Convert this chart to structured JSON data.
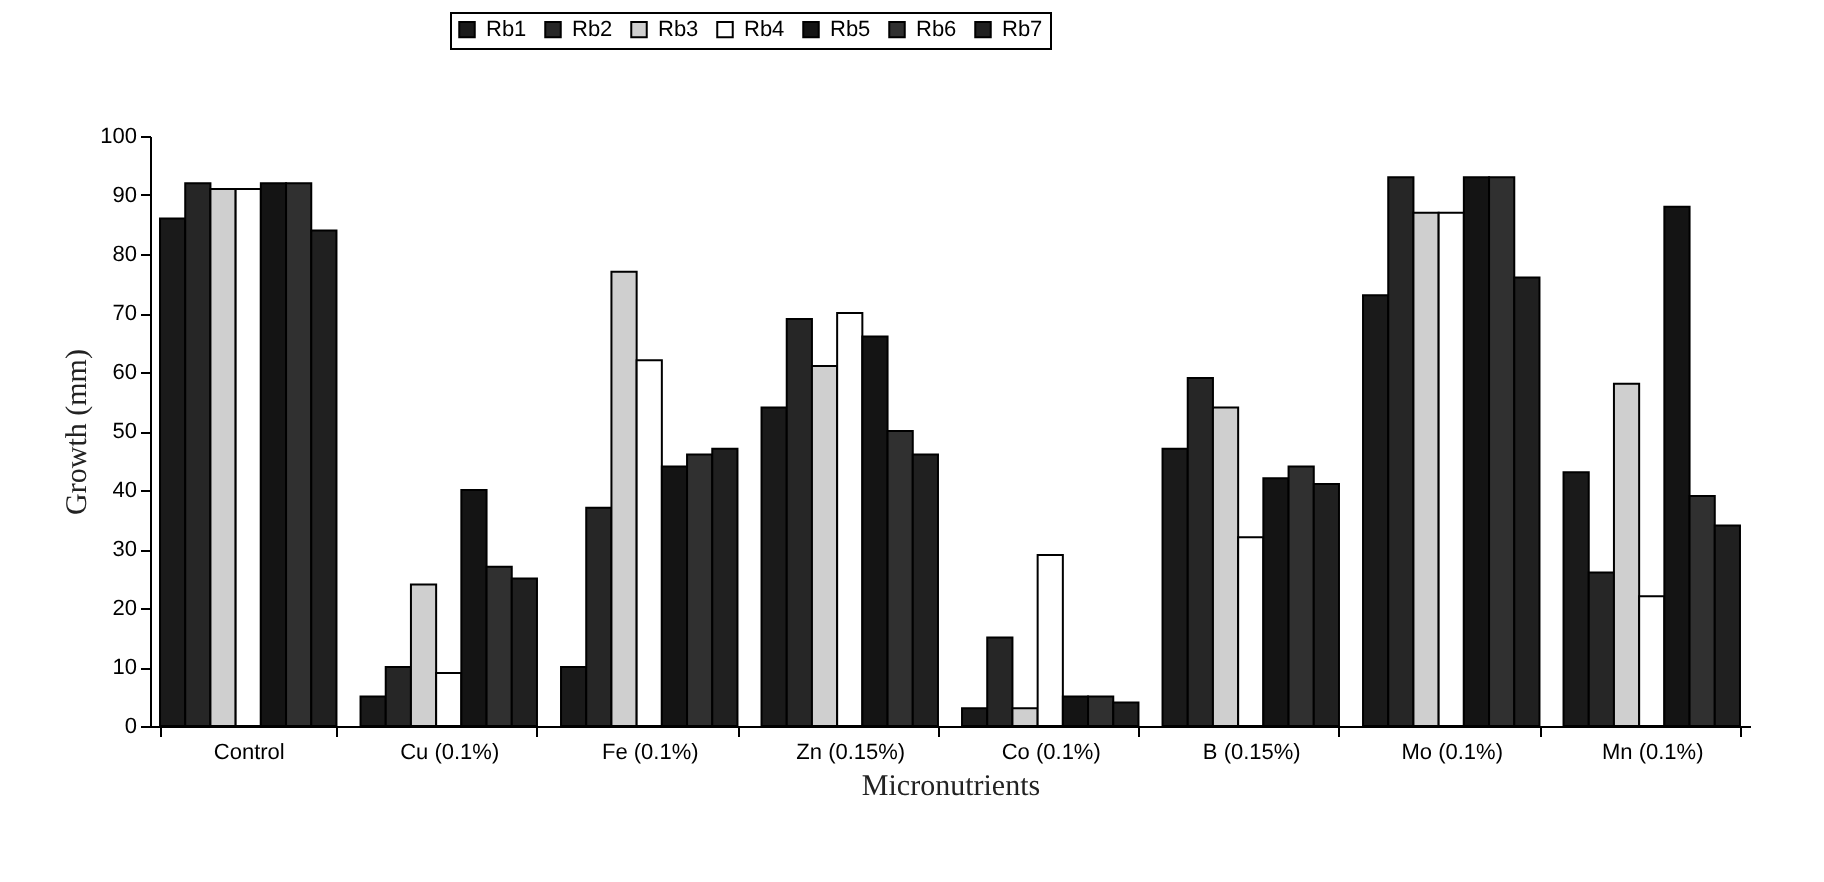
{
  "chart_data": {
    "type": "bar",
    "xlabel": "Micronutrients",
    "ylabel": "Growth (mm)",
    "categories": [
      "Control",
      "Cu (0.1%)",
      "Fe (0.1%)",
      "Zn (0.15%)",
      "Co (0.1%)",
      "B (0.15%)",
      "Mo (0.1%)",
      "Mn (0.1%)"
    ],
    "series": [
      {
        "name": "Rb1",
        "color": "#1a1a1a",
        "values": [
          86,
          5,
          10,
          54,
          3,
          47,
          73,
          43
        ]
      },
      {
        "name": "Rb2",
        "color": "#262626",
        "values": [
          92,
          10,
          37,
          69,
          15,
          59,
          93,
          26
        ]
      },
      {
        "name": "Rb3",
        "color": "#cfcfcf",
        "values": [
          91,
          24,
          77,
          61,
          3,
          54,
          87,
          58
        ]
      },
      {
        "name": "Rb4",
        "color": "#ffffff",
        "values": [
          91,
          9,
          62,
          70,
          29,
          32,
          87,
          22
        ]
      },
      {
        "name": "Rb5",
        "color": "#141414",
        "values": [
          92,
          40,
          44,
          66,
          5,
          42,
          93,
          88
        ]
      },
      {
        "name": "Rb6",
        "color": "#303030",
        "values": [
          92,
          27,
          46,
          50,
          5,
          44,
          93,
          39
        ]
      },
      {
        "name": "Rb7",
        "color": "#202020",
        "values": [
          84,
          25,
          47,
          46,
          4,
          41,
          76,
          34
        ]
      }
    ],
    "ylim": [
      0,
      100
    ],
    "yticks": [
      0,
      10,
      20,
      30,
      40,
      50,
      60,
      70,
      80,
      90,
      100
    ],
    "grid": false,
    "legend": "top"
  }
}
